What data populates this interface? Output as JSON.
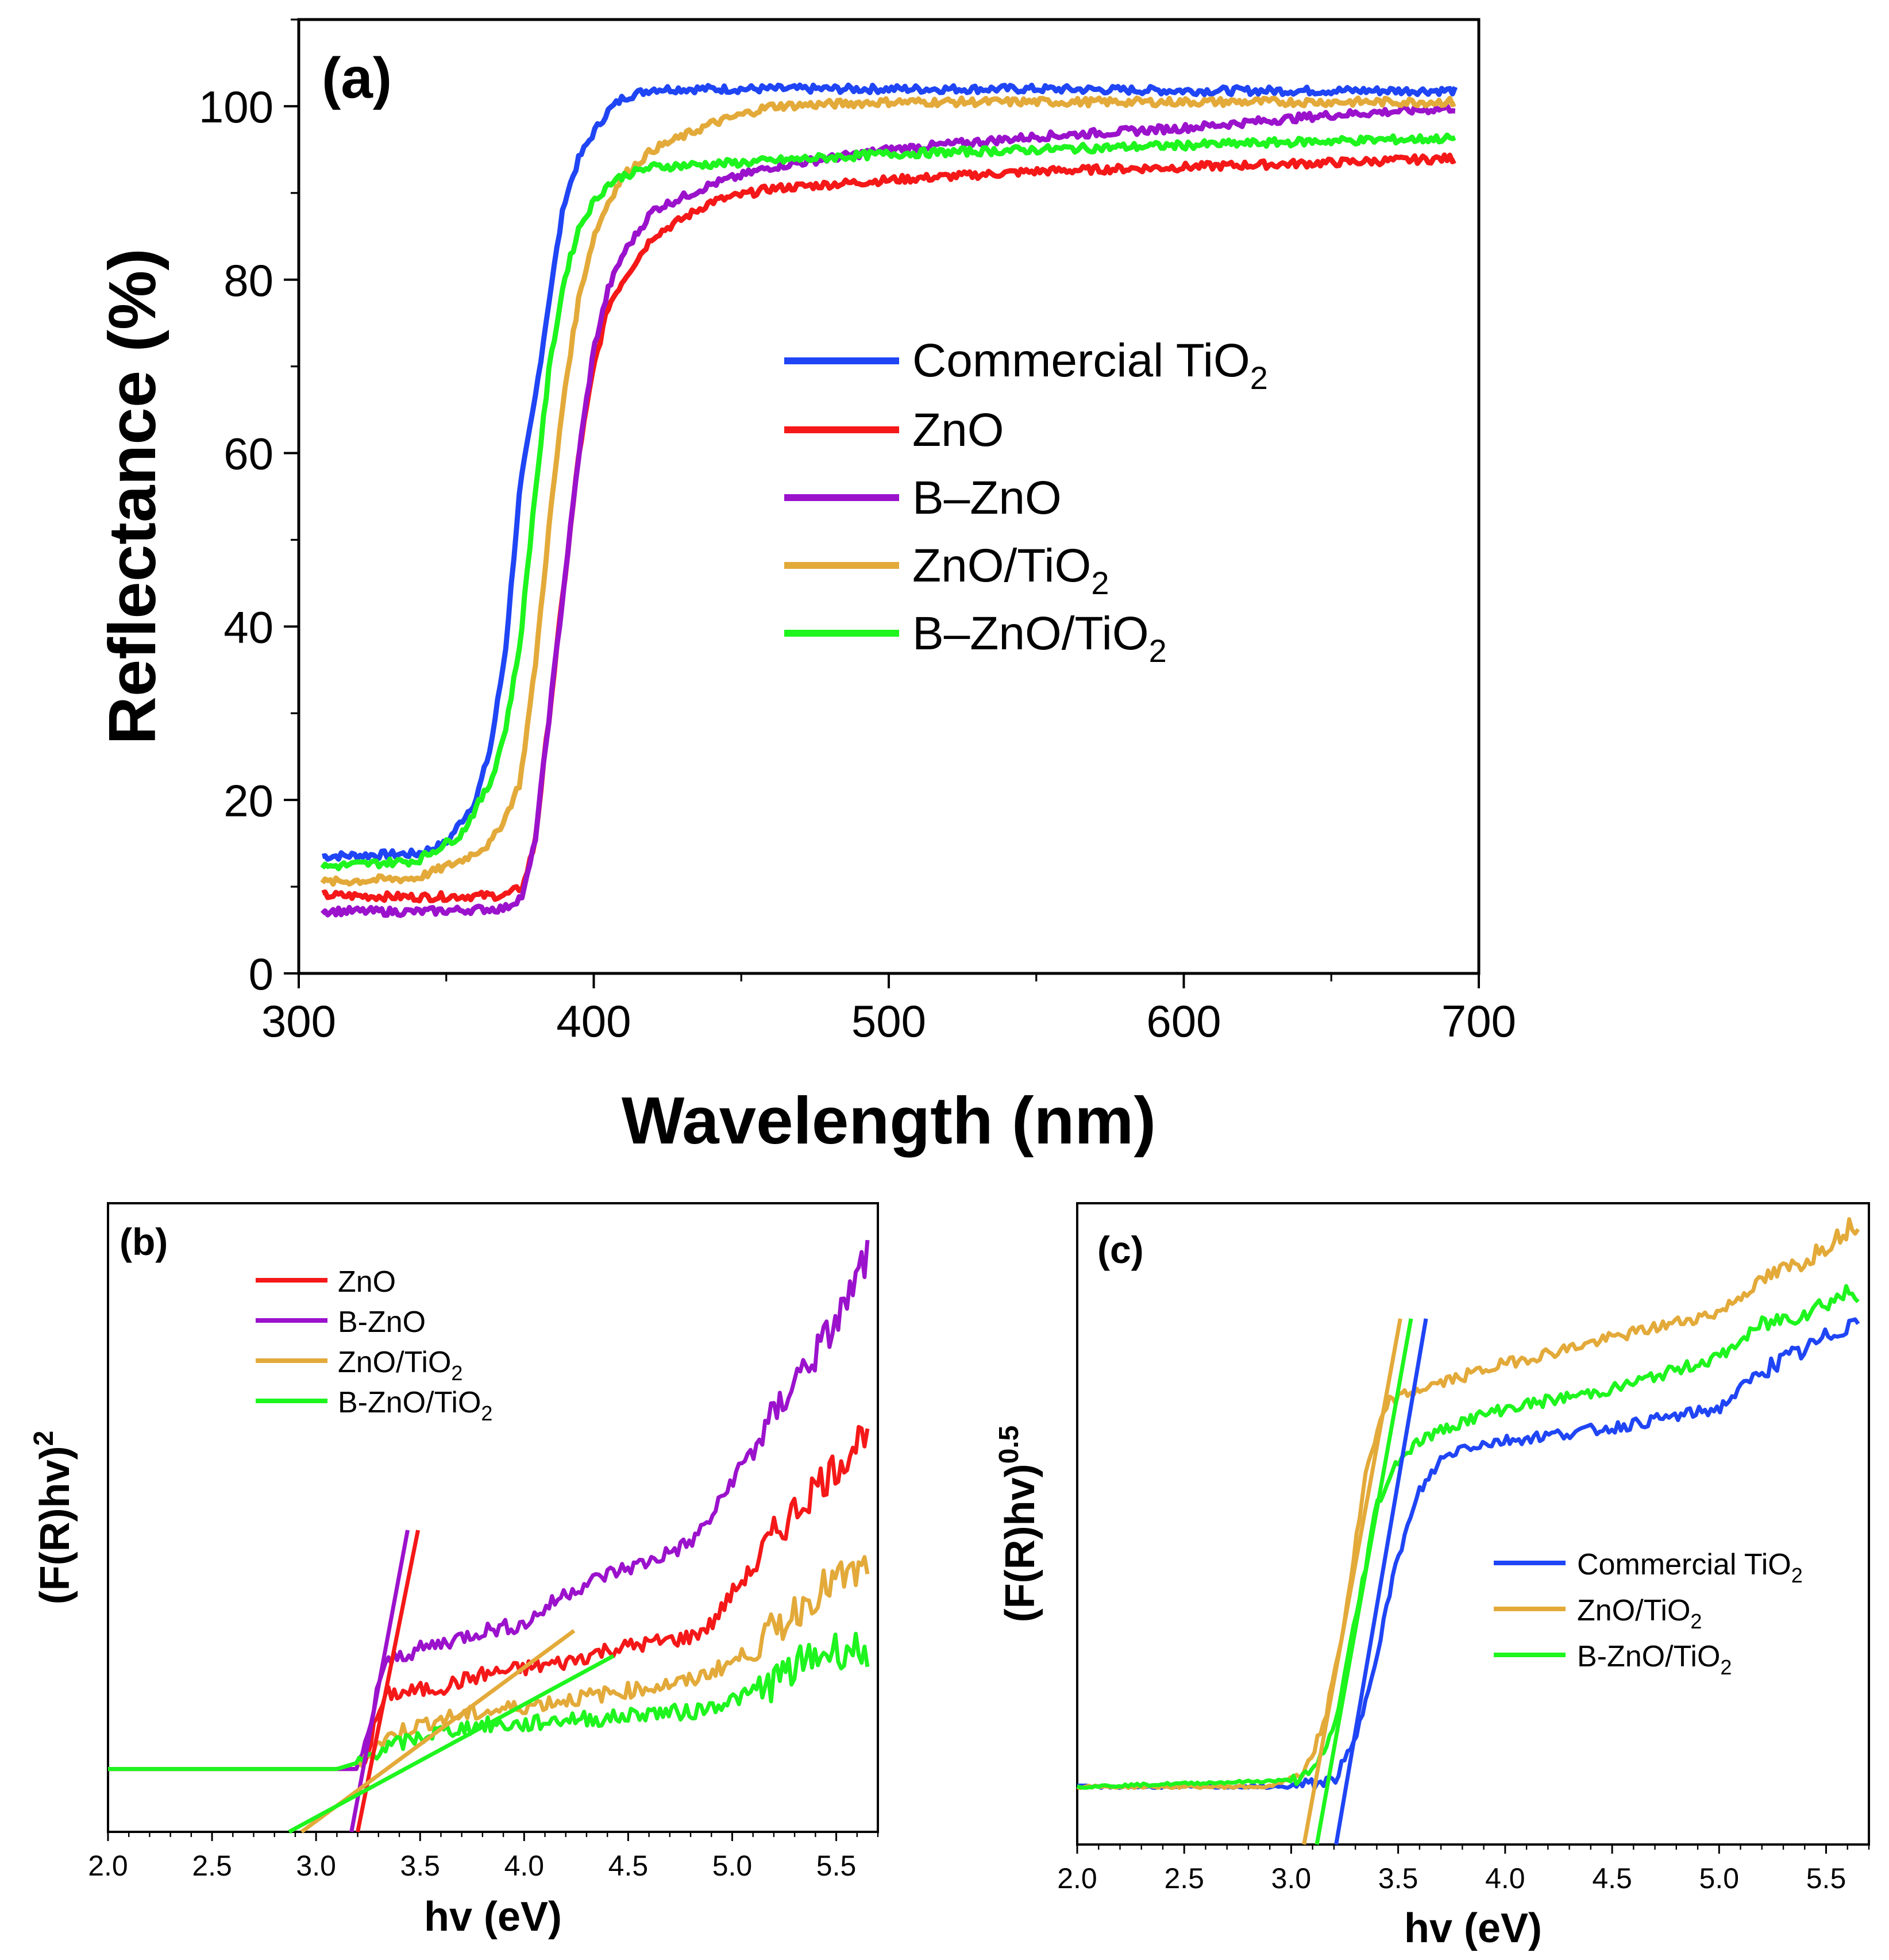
{
  "colors": {
    "commercial_tio2": "#1f45f5",
    "zno": "#f51818",
    "b_zno": "#9b12cc",
    "zno_tio2": "#e3aa3a",
    "b_zno_tio2": "#1ef51e"
  },
  "chart_data": [
    {
      "panel_label": "(a)",
      "type": "line",
      "xlabel": "Wavelength (nm)",
      "ylabel": "Reflectance (%)",
      "xlim": [
        300,
        700
      ],
      "ylim": [
        0,
        110
      ],
      "xticks": [
        "300",
        "400",
        "500",
        "600",
        "700"
      ],
      "yticks": [
        "0",
        "20",
        "40",
        "60",
        "80",
        "100"
      ],
      "legend_position": "center-right",
      "series": [
        {
          "name": "Commercial TiO2",
          "label_main": "Commercial TiO",
          "label_sub": "2",
          "color_key": "commercial_tio2",
          "x": [
            308,
            340,
            350,
            360,
            365,
            370,
            375,
            380,
            385,
            390,
            395,
            400,
            405,
            410,
            415,
            420,
            450,
            500,
            550,
            600,
            650,
            692
          ],
          "y": [
            13.5,
            13.8,
            15,
            20,
            26,
            37,
            56,
            66,
            78,
            89,
            94,
            97,
            99.5,
            101,
            101.5,
            102,
            102,
            102,
            102,
            101.8,
            101.8,
            101.8
          ]
        },
        {
          "name": "ZnO",
          "label_main": "ZnO",
          "label_sub": "",
          "color_key": "zno",
          "x": [
            308,
            340,
            370,
            376,
            380,
            385,
            390,
            395,
            400,
            405,
            410,
            420,
            440,
            460,
            500,
            550,
            600,
            650,
            692
          ],
          "y": [
            9,
            8.8,
            9,
            10,
            15,
            30,
            45,
            60,
            70,
            77,
            80,
            85,
            89,
            90.5,
            91.5,
            92.5,
            93,
            93.5,
            94
          ]
        },
        {
          "name": "B-ZnO",
          "label_main": "B–ZnO",
          "label_sub": "",
          "color_key": "b_zno",
          "x": [
            308,
            340,
            370,
            376,
            380,
            385,
            390,
            395,
            400,
            405,
            410,
            420,
            440,
            460,
            500,
            550,
            600,
            650,
            692
          ],
          "y": [
            7.2,
            7.1,
            7.5,
            9,
            15,
            30,
            45,
            60,
            72,
            79,
            83,
            88,
            91,
            93,
            95,
            96.5,
            97.5,
            99,
            99.8
          ]
        },
        {
          "name": "ZnO/TiO2",
          "label_main": "ZnO/TiO",
          "label_sub": "2",
          "color_key": "zno_tio2",
          "x": [
            308,
            340,
            355,
            365,
            370,
            375,
            380,
            385,
            390,
            395,
            400,
            405,
            410,
            420,
            440,
            460,
            500,
            550,
            600,
            650,
            692
          ],
          "y": [
            10.5,
            11,
            13,
            15,
            18,
            22,
            35,
            52,
            67,
            78,
            85,
            89,
            92,
            95,
            98,
            100,
            100.5,
            100.5,
            100.5,
            100.5,
            100.5
          ]
        },
        {
          "name": "B-ZnO/TiO2",
          "label_main": "B–ZnO/TiO",
          "label_sub": "2",
          "color_key": "b_zno_tio2",
          "x": [
            308,
            340,
            355,
            365,
            370,
            375,
            380,
            385,
            390,
            395,
            400,
            405,
            410,
            420,
            450,
            500,
            550,
            600,
            650,
            692
          ],
          "y": [
            12.3,
            13,
            16,
            22,
            28,
            38,
            55,
            70,
            80,
            86,
            89,
            91,
            92,
            93,
            93.5,
            94.5,
            95,
            95.5,
            96,
            96.3
          ]
        }
      ]
    },
    {
      "panel_label": "(b)",
      "type": "line",
      "xlabel": "hv (eV)",
      "ylabel_main": "(F(R)hv)",
      "ylabel_sup": "2",
      "xlim": [
        2.0,
        5.7
      ],
      "ylim": [
        0,
        1
      ],
      "xticks": [
        "2.0",
        "2.5",
        "3.0",
        "3.5",
        "4.0",
        "4.5",
        "5.0",
        "5.5"
      ],
      "legend_position": "top-left",
      "series": [
        {
          "name": "ZnO",
          "label_main": "ZnO",
          "label_sub": "",
          "color_key": "zno",
          "x": [
            2.0,
            3.2,
            3.25,
            3.3,
            3.35,
            3.4,
            3.6,
            3.8,
            4.0,
            4.2,
            4.4,
            4.6,
            4.8,
            4.9,
            5.0,
            5.1,
            5.2,
            5.3,
            5.4,
            5.5,
            5.6,
            5.65
          ],
          "y": [
            0.1,
            0.1,
            0.13,
            0.19,
            0.22,
            0.22,
            0.23,
            0.25,
            0.26,
            0.27,
            0.29,
            0.3,
            0.31,
            0.33,
            0.38,
            0.42,
            0.47,
            0.51,
            0.55,
            0.58,
            0.62,
            0.65
          ]
        },
        {
          "name": "B-ZnO",
          "label_main": "B-ZnO",
          "label_sub": "",
          "color_key": "b_zno",
          "x": [
            2.0,
            3.2,
            3.25,
            3.3,
            3.35,
            3.4,
            3.6,
            3.8,
            4.0,
            4.2,
            4.4,
            4.6,
            4.8,
            4.9,
            5.0,
            5.1,
            5.2,
            5.3,
            5.4,
            5.5,
            5.6,
            5.65
          ],
          "y": [
            0.1,
            0.1,
            0.15,
            0.24,
            0.27,
            0.28,
            0.3,
            0.32,
            0.33,
            0.38,
            0.41,
            0.43,
            0.46,
            0.5,
            0.56,
            0.61,
            0.66,
            0.72,
            0.76,
            0.81,
            0.88,
            0.92
          ]
        },
        {
          "name": "ZnO/TiO2",
          "label_main": "ZnO/TiO",
          "label_sub": "2",
          "color_key": "zno_tio2",
          "x": [
            2.0,
            3.1,
            3.2,
            3.3,
            3.4,
            3.6,
            3.8,
            4.0,
            4.2,
            4.4,
            4.6,
            4.8,
            5.0,
            5.1,
            5.2,
            5.3,
            5.4,
            5.5,
            5.6,
            5.65
          ],
          "y": [
            0.1,
            0.1,
            0.11,
            0.14,
            0.16,
            0.18,
            0.19,
            0.2,
            0.21,
            0.22,
            0.23,
            0.24,
            0.27,
            0.29,
            0.32,
            0.35,
            0.38,
            0.4,
            0.41,
            0.42
          ]
        },
        {
          "name": "B-ZnO/TiO2",
          "label_main": "B-ZnO/TiO",
          "label_sub": "2",
          "color_key": "b_zno_tio2",
          "x": [
            2.0,
            3.1,
            3.2,
            3.3,
            3.4,
            3.6,
            3.8,
            4.0,
            4.2,
            4.4,
            4.6,
            4.8,
            5.0,
            5.1,
            5.2,
            5.3,
            5.4,
            5.5,
            5.6,
            5.65
          ],
          "y": [
            0.1,
            0.1,
            0.11,
            0.13,
            0.14,
            0.16,
            0.17,
            0.17,
            0.18,
            0.18,
            0.19,
            0.19,
            0.21,
            0.22,
            0.24,
            0.26,
            0.28,
            0.29,
            0.29,
            0.29
          ]
        }
      ],
      "fit_lines": [
        {
          "color_key": "b_zno",
          "x": [
            3.17,
            3.44
          ],
          "y": [
            0.0,
            0.48
          ]
        },
        {
          "color_key": "zno",
          "x": [
            3.2,
            3.49
          ],
          "y": [
            0.0,
            0.48
          ]
        },
        {
          "color_key": "zno_tio2",
          "x": [
            2.93,
            4.24
          ],
          "y": [
            0.0,
            0.32
          ]
        },
        {
          "color_key": "b_zno_tio2",
          "x": [
            2.87,
            4.43
          ],
          "y": [
            0.0,
            0.28
          ]
        }
      ]
    },
    {
      "panel_label": "(c)",
      "type": "line",
      "xlabel": "hv (eV)",
      "ylabel_main": "(F(R)hv)",
      "ylabel_sup": "0.5",
      "xlim": [
        2.0,
        5.7
      ],
      "ylim": [
        0,
        1
      ],
      "xticks": [
        "2.0",
        "2.5",
        "3.0",
        "3.5",
        "4.0",
        "4.5",
        "5.0",
        "5.5"
      ],
      "legend_position": "center-right",
      "series": [
        {
          "name": "Commercial TiO2",
          "label_main": "Commercial TiO",
          "label_sub": "2",
          "color_key": "commercial_tio2",
          "x": [
            2.0,
            3.0,
            3.2,
            3.3,
            3.4,
            3.5,
            3.6,
            3.7,
            3.8,
            4.0,
            4.5,
            5.0,
            5.2,
            5.4,
            5.6,
            5.65
          ],
          "y": [
            0.09,
            0.09,
            0.1,
            0.16,
            0.3,
            0.45,
            0.55,
            0.6,
            0.62,
            0.63,
            0.65,
            0.68,
            0.74,
            0.77,
            0.81,
            0.82
          ]
        },
        {
          "name": "ZnO/TiO2",
          "label_main": "ZnO/TiO",
          "label_sub": "2",
          "color_key": "zno_tio2",
          "x": [
            2.0,
            2.9,
            3.05,
            3.15,
            3.25,
            3.35,
            3.45,
            3.6,
            3.8,
            4.0,
            4.5,
            5.0,
            5.2,
            5.4,
            5.6,
            5.65
          ],
          "y": [
            0.09,
            0.09,
            0.11,
            0.18,
            0.35,
            0.58,
            0.69,
            0.71,
            0.73,
            0.75,
            0.79,
            0.83,
            0.88,
            0.91,
            0.96,
            0.97
          ]
        },
        {
          "name": "B-ZnO/TiO2",
          "label_main": "B-ZnO/TiO",
          "label_sub": "2",
          "color_key": "b_zno_tio2",
          "x": [
            2.0,
            3.0,
            3.1,
            3.2,
            3.3,
            3.4,
            3.5,
            3.6,
            3.8,
            4.0,
            4.5,
            5.0,
            5.2,
            5.4,
            5.6,
            5.65
          ],
          "y": [
            0.09,
            0.1,
            0.11,
            0.18,
            0.35,
            0.53,
            0.6,
            0.63,
            0.66,
            0.68,
            0.71,
            0.76,
            0.81,
            0.83,
            0.86,
            0.86
          ]
        }
      ],
      "fit_lines": [
        {
          "color_key": "zno_tio2",
          "x": [
            3.06,
            3.51
          ],
          "y": [
            0.0,
            0.82
          ]
        },
        {
          "color_key": "b_zno_tio2",
          "x": [
            3.12,
            3.56
          ],
          "y": [
            0.0,
            0.82
          ]
        },
        {
          "color_key": "commercial_tio2",
          "x": [
            3.21,
            3.63
          ],
          "y": [
            0.0,
            0.82
          ]
        }
      ]
    }
  ]
}
